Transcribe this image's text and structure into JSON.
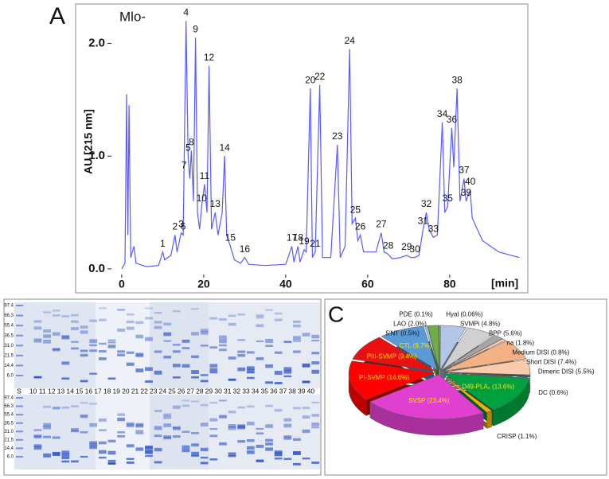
{
  "chart_data": [
    {
      "type": "line",
      "panel_label": "A",
      "title": "Mlo-",
      "xlabel": "[min]",
      "ylabel": "AU [215 nm]",
      "color": "#5a5aff",
      "x": [
        0,
        0.8,
        1.2,
        1.5,
        1.8,
        2.2,
        3,
        3.5,
        6,
        9,
        10,
        10.5,
        12,
        13,
        13.5,
        14.5,
        15,
        15.7,
        16.2,
        16.6,
        17,
        17.5,
        18,
        18.5,
        19,
        19.5,
        20.2,
        20.8,
        21.3,
        21.9,
        22.8,
        23.5,
        24.5,
        25.1,
        25.6,
        26.5,
        27.5,
        29,
        30,
        31,
        35,
        40,
        41.5,
        42,
        43,
        43.5,
        44.5,
        45,
        46,
        46.5,
        47.2,
        48.3,
        49,
        51,
        52.6,
        53.3,
        54.5,
        55.6,
        56.2,
        57,
        57.6,
        58.2,
        59,
        62,
        63.3,
        64,
        65,
        66,
        68,
        69.5,
        70.5,
        71.5,
        72.5,
        73.5,
        74.3,
        75,
        76,
        77,
        78.2,
        78.8,
        79.5,
        80.5,
        81,
        81.8,
        82.5,
        83.5,
        84,
        85,
        85.5,
        88,
        92,
        97
      ],
      "values": [
        0,
        0.05,
        1.55,
        0.3,
        1.45,
        0.1,
        0.2,
        0.05,
        0.02,
        0.03,
        0.15,
        0.08,
        0.12,
        0.3,
        0.15,
        0.32,
        0.3,
        2.2,
        1.0,
        0.8,
        1.05,
        0.6,
        2.05,
        0.5,
        0.35,
        0.55,
        0.75,
        0.5,
        1.8,
        0.35,
        0.5,
        0.3,
        0.5,
        1.0,
        0.3,
        0.2,
        0.08,
        0.05,
        0.1,
        0.04,
        0.03,
        0.04,
        0.2,
        0.06,
        0.2,
        0.06,
        0.17,
        0.15,
        1.6,
        0.1,
        0.15,
        1.63,
        0.1,
        0.1,
        1.1,
        0.1,
        0.2,
        1.95,
        0.4,
        0.45,
        0.25,
        0.3,
        0.15,
        0.15,
        0.32,
        0.15,
        0.13,
        0.09,
        0.1,
        0.12,
        0.1,
        0.1,
        0.12,
        0.35,
        0.5,
        0.35,
        0.28,
        0.3,
        1.3,
        0.5,
        0.55,
        1.25,
        0.9,
        1.6,
        0.6,
        0.8,
        0.6,
        0.7,
        0.45,
        0.25,
        0.15,
        0.1
      ],
      "xlim": [
        -2.5,
        97.5
      ],
      "xticks": [
        0,
        20,
        40,
        60,
        80
      ],
      "ylim": [
        -0.05,
        2.3
      ],
      "yticks": [
        {
          "value": 0,
          "label": "0.0"
        },
        {
          "value": 1,
          "label": "1.0"
        },
        {
          "value": 2,
          "label": "2.0"
        }
      ],
      "peak_labels": [
        {
          "label": "1",
          "x": 10
        },
        {
          "label": "2",
          "x": 13
        },
        {
          "label": "3",
          "x": 14.5
        },
        {
          "label": "4",
          "x": 15.7
        },
        {
          "label": "5",
          "x": 16.2
        },
        {
          "label": "6",
          "x": 15
        },
        {
          "label": "7",
          "x": 15.2
        },
        {
          "label": "8",
          "x": 17
        },
        {
          "label": "9",
          "x": 18
        },
        {
          "label": "10",
          "x": 19.5
        },
        {
          "label": "11",
          "x": 20.2
        },
        {
          "label": "12",
          "x": 21.3
        },
        {
          "label": "13",
          "x": 22.8
        },
        {
          "label": "14",
          "x": 25.1
        },
        {
          "label": "15",
          "x": 26.5
        },
        {
          "label": "16",
          "x": 30
        },
        {
          "label": "17",
          "x": 41.5
        },
        {
          "label": "18",
          "x": 43
        },
        {
          "label": "19",
          "x": 44.5
        },
        {
          "label": "20",
          "x": 46
        },
        {
          "label": "21",
          "x": 47.2
        },
        {
          "label": "22",
          "x": 48.3
        },
        {
          "label": "23",
          "x": 52.6
        },
        {
          "label": "24",
          "x": 55.6
        },
        {
          "label": "25",
          "x": 57
        },
        {
          "label": "26",
          "x": 58.2
        },
        {
          "label": "27",
          "x": 63.3
        },
        {
          "label": "28",
          "x": 65
        },
        {
          "label": "29",
          "x": 69.5
        },
        {
          "label": "30",
          "x": 71.5
        },
        {
          "label": "31",
          "x": 73.5
        },
        {
          "label": "32",
          "x": 74.3
        },
        {
          "label": "33",
          "x": 76
        },
        {
          "label": "34",
          "x": 78.2
        },
        {
          "label": "35",
          "x": 79.5
        },
        {
          "label": "36",
          "x": 80.5
        },
        {
          "label": "37",
          "x": 83.5
        },
        {
          "label": "38",
          "x": 81.8
        },
        {
          "label": "39",
          "x": 84
        },
        {
          "label": "40",
          "x": 85
        }
      ]
    },
    {
      "type": "gel",
      "panel_label": "B",
      "markers": [
        "97.4",
        "66.3",
        "55.4",
        "36.5",
        "31.0",
        "21.5",
        "14.4",
        "6.0"
      ],
      "lanes": [
        "S",
        "10",
        "11",
        "12",
        "13",
        "14",
        "15",
        "16",
        "17",
        "18",
        "19",
        "20",
        "21",
        "22",
        "23",
        "24",
        "25",
        "26",
        "27",
        "28",
        "29",
        "30",
        "31",
        "32",
        "33",
        "34",
        "35",
        "36",
        "37",
        "38",
        "39",
        "40"
      ]
    },
    {
      "type": "pie",
      "panel_label": "C",
      "values": [
        0.06,
        4.8,
        5.6,
        1.8,
        0.8,
        7.4,
        5.5,
        0.6,
        13.6,
        1.1,
        23.4,
        14.6,
        9.4,
        8.7,
        0.5,
        2.0,
        0.1
      ],
      "value_labels": [
        "Hyal (0.06%)",
        "SVMPi (4.8%)",
        "BPP  (5.6%)",
        "na (1.8%)",
        "Medium DISI (0.8%)",
        "Short DISI (7.4%)",
        "Dimeric DISI (5.5%)",
        "DC (0.6%)",
        "D49-PLA₂ (13.6%)",
        "CRISP (1.1%)",
        "SVSP (23.4%)",
        "PI-SVMP (14.6%)",
        "PIII-SVMP (9.4%)",
        "CTL (8.7%)",
        "5'NT (0.5%)",
        "LAO (2.0%)",
        "PDE (0.1%)"
      ],
      "colors": [
        "#f2f2f2",
        "#b4c6e7",
        "#d0d0d0",
        "#a6a6a6",
        "#f8cbad",
        "#f4b183",
        "#f8cbad",
        "#1f4e79",
        "#00a040",
        "#f0b000",
        "#e040d0",
        "#ff0000",
        "#e81010",
        "#5b9bd5",
        "#9dc3e6",
        "#70ad47",
        "#808080"
      ]
    }
  ]
}
